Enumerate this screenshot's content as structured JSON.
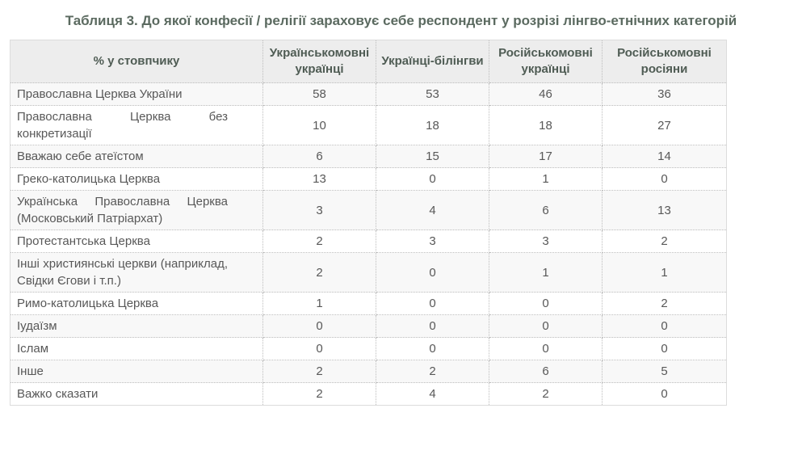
{
  "title": "Таблиця 3. До якої конфесії / релігії зараховує себе респондент у розрізі лінгво-етнічних категорій",
  "colors": {
    "title_text": "#5b6a60",
    "header_text": "#4f5c54",
    "cell_text": "#585858",
    "header_background": "#ededed",
    "odd_row_background": "#f8f8f8",
    "border_dotted": "#bdbdbd"
  },
  "chart_data": {
    "type": "table",
    "title": "Таблиця 3. До якої конфесії / релігії зараховує себе респондент у розрізі лінгво-етнічних категорій",
    "corner_header": "% у стовпчику",
    "categories": [
      "Українськомовні українці",
      "Українці-білінгви",
      "Російськомовні українці",
      "Російськомовні росіяни"
    ],
    "rows": [
      {
        "label": "Православна Церква України",
        "values": [
          58,
          53,
          46,
          36
        ]
      },
      {
        "label": "Православна Церква без конкретизації",
        "values": [
          10,
          18,
          18,
          27
        ]
      },
      {
        "label": "Вважаю себе атеїстом",
        "values": [
          6,
          15,
          17,
          14
        ]
      },
      {
        "label": "Греко-католицька Церква",
        "values": [
          13,
          0,
          1,
          0
        ]
      },
      {
        "label": "Українська Православна Церква (Московський Патріархат)",
        "values": [
          3,
          4,
          6,
          13
        ]
      },
      {
        "label": "Протестантська Церква",
        "values": [
          2,
          3,
          3,
          2
        ]
      },
      {
        "label": "Інші християнські церкви (наприклад, Свідки Єгови і т.п.)",
        "values": [
          2,
          0,
          1,
          1
        ]
      },
      {
        "label": "Римо-католицька Церква",
        "values": [
          1,
          0,
          0,
          2
        ]
      },
      {
        "label": "Іудаїзм",
        "values": [
          0,
          0,
          0,
          0
        ]
      },
      {
        "label": "Іслам",
        "values": [
          0,
          0,
          0,
          0
        ]
      },
      {
        "label": "Інше",
        "values": [
          2,
          2,
          6,
          5
        ]
      },
      {
        "label": "Важко сказати",
        "values": [
          2,
          4,
          2,
          0
        ]
      }
    ]
  }
}
